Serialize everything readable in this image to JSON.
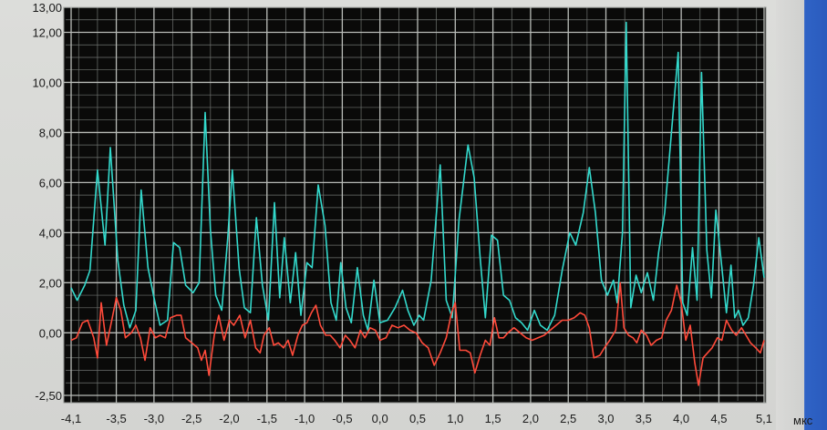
{
  "chart_data": {
    "type": "line",
    "xunit": "мкс",
    "ylim": [
      -2.5,
      13.0
    ],
    "xlim": [
      -4.1,
      5.1
    ],
    "grid": true,
    "y_ticks": [
      {
        "v": -2.5,
        "label": "-2,50"
      },
      {
        "v": 0,
        "label": "0,00"
      },
      {
        "v": 2,
        "label": "2,00"
      },
      {
        "v": 4,
        "label": "4,00"
      },
      {
        "v": 6,
        "label": "6,00"
      },
      {
        "v": 8,
        "label": "8,00"
      },
      {
        "v": 10,
        "label": "10,00"
      },
      {
        "v": 12,
        "label": "12,00"
      },
      {
        "v": 13,
        "label": "13,00"
      }
    ],
    "x_ticks": [
      {
        "v": -4.1,
        "label": "-4,1"
      },
      {
        "v": -3.5,
        "label": "-3,5"
      },
      {
        "v": -3.0,
        "label": "-3,0"
      },
      {
        "v": -2.5,
        "label": "-2,5"
      },
      {
        "v": -2.0,
        "label": "-2,0"
      },
      {
        "v": -1.5,
        "label": "-1,5"
      },
      {
        "v": -1.0,
        "label": "-1,0"
      },
      {
        "v": -0.5,
        "label": "-0,5"
      },
      {
        "v": 0.0,
        "label": "0,0"
      },
      {
        "v": 0.5,
        "label": "0,5"
      },
      {
        "v": 1.0,
        "label": "1,0"
      },
      {
        "v": 1.5,
        "label": "1,5"
      },
      {
        "v": 2.0,
        "label": "2,0"
      },
      {
        "v": 2.5,
        "label": "2,5"
      },
      {
        "v": 3.0,
        "label": "3,0"
      },
      {
        "v": 3.5,
        "label": "3,5"
      },
      {
        "v": 4.0,
        "label": "4,0"
      },
      {
        "v": 4.5,
        "label": "4,5"
      },
      {
        "v": 5.1,
        "label": "5,1"
      }
    ],
    "series": [
      {
        "color": "#33d9cc",
        "points": [
          [
            -4.1,
            1.8
          ],
          [
            -4.02,
            1.3
          ],
          [
            -3.92,
            1.9
          ],
          [
            -3.85,
            2.5
          ],
          [
            -3.75,
            6.5
          ],
          [
            -3.65,
            3.5
          ],
          [
            -3.58,
            7.4
          ],
          [
            -3.48,
            2.9
          ],
          [
            -3.4,
            1.1
          ],
          [
            -3.32,
            0.2
          ],
          [
            -3.24,
            0.9
          ],
          [
            -3.17,
            5.7
          ],
          [
            -3.08,
            2.6
          ],
          [
            -3.0,
            1.4
          ],
          [
            -2.92,
            0.3
          ],
          [
            -2.82,
            0.5
          ],
          [
            -2.74,
            3.6
          ],
          [
            -2.66,
            3.4
          ],
          [
            -2.58,
            1.9
          ],
          [
            -2.48,
            1.6
          ],
          [
            -2.4,
            2.0
          ],
          [
            -2.32,
            8.8
          ],
          [
            -2.25,
            4.1
          ],
          [
            -2.18,
            1.5
          ],
          [
            -2.1,
            0.9
          ],
          [
            -2.02,
            3.8
          ],
          [
            -1.96,
            6.5
          ],
          [
            -1.87,
            2.6
          ],
          [
            -1.8,
            1.0
          ],
          [
            -1.72,
            0.8
          ],
          [
            -1.64,
            4.6
          ],
          [
            -1.56,
            1.9
          ],
          [
            -1.48,
            0.5
          ],
          [
            -1.4,
            5.2
          ],
          [
            -1.33,
            1.4
          ],
          [
            -1.27,
            3.8
          ],
          [
            -1.19,
            1.2
          ],
          [
            -1.12,
            3.2
          ],
          [
            -1.05,
            0.7
          ],
          [
            -0.97,
            2.8
          ],
          [
            -0.9,
            2.6
          ],
          [
            -0.82,
            5.9
          ],
          [
            -0.73,
            4.3
          ],
          [
            -0.65,
            1.2
          ],
          [
            -0.58,
            0.5
          ],
          [
            -0.52,
            2.8
          ],
          [
            -0.45,
            1.0
          ],
          [
            -0.38,
            0.4
          ],
          [
            -0.3,
            2.6
          ],
          [
            -0.22,
            0.7
          ],
          [
            -0.16,
            0.1
          ],
          [
            -0.08,
            2.1
          ],
          [
            0.0,
            0.4
          ],
          [
            0.1,
            0.5
          ],
          [
            0.2,
            1.0
          ],
          [
            0.3,
            1.7
          ],
          [
            0.37,
            0.9
          ],
          [
            0.45,
            0.3
          ],
          [
            0.52,
            0.7
          ],
          [
            0.58,
            0.5
          ],
          [
            0.68,
            2.1
          ],
          [
            0.8,
            6.7
          ],
          [
            0.88,
            1.3
          ],
          [
            0.96,
            0.6
          ],
          [
            1.05,
            4.5
          ],
          [
            1.17,
            7.5
          ],
          [
            1.25,
            6.2
          ],
          [
            1.33,
            3.0
          ],
          [
            1.4,
            0.6
          ],
          [
            1.48,
            3.9
          ],
          [
            1.56,
            3.7
          ],
          [
            1.64,
            1.5
          ],
          [
            1.72,
            1.3
          ],
          [
            1.8,
            0.6
          ],
          [
            1.88,
            0.4
          ],
          [
            1.96,
            0.1
          ],
          [
            2.05,
            0.9
          ],
          [
            2.13,
            0.3
          ],
          [
            2.22,
            0.1
          ],
          [
            2.32,
            0.7
          ],
          [
            2.42,
            2.5
          ],
          [
            2.52,
            4.0
          ],
          [
            2.6,
            3.5
          ],
          [
            2.7,
            4.8
          ],
          [
            2.78,
            6.6
          ],
          [
            2.86,
            4.8
          ],
          [
            2.94,
            2.1
          ],
          [
            3.02,
            1.5
          ],
          [
            3.1,
            2.1
          ],
          [
            3.15,
            1.2
          ],
          [
            3.22,
            4.0
          ],
          [
            3.27,
            12.4
          ],
          [
            3.33,
            1.0
          ],
          [
            3.4,
            2.3
          ],
          [
            3.47,
            1.6
          ],
          [
            3.55,
            2.4
          ],
          [
            3.63,
            1.3
          ],
          [
            3.7,
            3.2
          ],
          [
            3.78,
            4.8
          ],
          [
            3.87,
            8.0
          ],
          [
            3.96,
            11.2
          ],
          [
            4.02,
            1.2
          ],
          [
            4.08,
            0.7
          ],
          [
            4.15,
            3.4
          ],
          [
            4.21,
            1.3
          ],
          [
            4.27,
            10.4
          ],
          [
            4.34,
            3.3
          ],
          [
            4.4,
            1.4
          ],
          [
            4.46,
            4.9
          ],
          [
            4.54,
            2.6
          ],
          [
            4.6,
            0.8
          ],
          [
            4.66,
            2.7
          ],
          [
            4.71,
            0.6
          ],
          [
            4.76,
            0.9
          ],
          [
            4.82,
            0.3
          ],
          [
            4.89,
            0.6
          ],
          [
            4.96,
            1.9
          ],
          [
            5.03,
            3.8
          ],
          [
            5.1,
            2.2
          ]
        ]
      },
      {
        "color": "#ff4a3a",
        "points": [
          [
            -4.1,
            -0.3
          ],
          [
            -4.03,
            -0.2
          ],
          [
            -3.95,
            0.4
          ],
          [
            -3.88,
            0.5
          ],
          [
            -3.8,
            -0.2
          ],
          [
            -3.75,
            -1.0
          ],
          [
            -3.7,
            1.2
          ],
          [
            -3.63,
            -0.5
          ],
          [
            -3.56,
            0.5
          ],
          [
            -3.5,
            1.4
          ],
          [
            -3.44,
            0.9
          ],
          [
            -3.38,
            -0.2
          ],
          [
            -3.3,
            0.0
          ],
          [
            -3.24,
            0.3
          ],
          [
            -3.18,
            -0.2
          ],
          [
            -3.12,
            -1.1
          ],
          [
            -3.05,
            0.2
          ],
          [
            -2.98,
            -0.2
          ],
          [
            -2.92,
            -0.1
          ],
          [
            -2.85,
            -0.2
          ],
          [
            -2.78,
            0.6
          ],
          [
            -2.7,
            0.7
          ],
          [
            -2.64,
            0.7
          ],
          [
            -2.58,
            -0.2
          ],
          [
            -2.5,
            -0.4
          ],
          [
            -2.42,
            -0.6
          ],
          [
            -2.37,
            -1.1
          ],
          [
            -2.32,
            -0.7
          ],
          [
            -2.27,
            -1.7
          ],
          [
            -2.2,
            -0.1
          ],
          [
            -2.14,
            0.7
          ],
          [
            -2.07,
            -0.3
          ],
          [
            -2.0,
            0.5
          ],
          [
            -1.94,
            0.3
          ],
          [
            -1.86,
            0.7
          ],
          [
            -1.79,
            -0.2
          ],
          [
            -1.72,
            0.5
          ],
          [
            -1.65,
            -0.6
          ],
          [
            -1.59,
            -0.8
          ],
          [
            -1.54,
            -0.1
          ],
          [
            -1.47,
            0.2
          ],
          [
            -1.41,
            -0.5
          ],
          [
            -1.35,
            -0.4
          ],
          [
            -1.28,
            -0.6
          ],
          [
            -1.22,
            -0.3
          ],
          [
            -1.16,
            -0.9
          ],
          [
            -1.09,
            -0.1
          ],
          [
            -1.03,
            0.3
          ],
          [
            -0.97,
            0.4
          ],
          [
            -0.91,
            0.8
          ],
          [
            -0.85,
            1.1
          ],
          [
            -0.79,
            0.3
          ],
          [
            -0.72,
            -0.1
          ],
          [
            -0.66,
            -0.1
          ],
          [
            -0.6,
            -0.3
          ],
          [
            -0.53,
            -0.6
          ],
          [
            -0.46,
            -0.1
          ],
          [
            -0.4,
            -0.3
          ],
          [
            -0.33,
            -0.6
          ],
          [
            -0.26,
            0.1
          ],
          [
            -0.2,
            -0.2
          ],
          [
            -0.13,
            0.2
          ],
          [
            -0.06,
            0.1
          ],
          [
            0.0,
            -0.3
          ],
          [
            0.08,
            -0.2
          ],
          [
            0.16,
            0.3
          ],
          [
            0.24,
            0.2
          ],
          [
            0.32,
            0.3
          ],
          [
            0.4,
            0.1
          ],
          [
            0.48,
            0.0
          ],
          [
            0.56,
            -0.4
          ],
          [
            0.64,
            -0.6
          ],
          [
            0.72,
            -1.3
          ],
          [
            0.8,
            -0.8
          ],
          [
            0.88,
            -0.2
          ],
          [
            0.95,
            0.8
          ],
          [
            1.0,
            1.2
          ],
          [
            1.06,
            -0.7
          ],
          [
            1.14,
            -0.7
          ],
          [
            1.2,
            -0.8
          ],
          [
            1.26,
            -1.6
          ],
          [
            1.33,
            -0.9
          ],
          [
            1.4,
            -0.3
          ],
          [
            1.46,
            -0.5
          ],
          [
            1.52,
            0.6
          ],
          [
            1.58,
            -0.2
          ],
          [
            1.64,
            -0.2
          ],
          [
            1.7,
            0.0
          ],
          [
            1.78,
            0.2
          ],
          [
            1.86,
            0.0
          ],
          [
            1.94,
            -0.2
          ],
          [
            2.02,
            -0.3
          ],
          [
            2.1,
            -0.2
          ],
          [
            2.18,
            -0.1
          ],
          [
            2.26,
            0.1
          ],
          [
            2.34,
            0.3
          ],
          [
            2.42,
            0.5
          ],
          [
            2.5,
            0.5
          ],
          [
            2.58,
            0.6
          ],
          [
            2.66,
            0.8
          ],
          [
            2.72,
            0.7
          ],
          [
            2.78,
            0.2
          ],
          [
            2.84,
            -1.0
          ],
          [
            2.92,
            -0.9
          ],
          [
            2.98,
            -0.6
          ],
          [
            3.05,
            -0.3
          ],
          [
            3.13,
            0.1
          ],
          [
            3.19,
            2.0
          ],
          [
            3.24,
            0.2
          ],
          [
            3.3,
            -0.1
          ],
          [
            3.36,
            -0.2
          ],
          [
            3.41,
            -0.4
          ],
          [
            3.47,
            0.1
          ],
          [
            3.54,
            -0.1
          ],
          [
            3.6,
            -0.5
          ],
          [
            3.67,
            -0.3
          ],
          [
            3.74,
            -0.2
          ],
          [
            3.8,
            0.5
          ],
          [
            3.87,
            0.9
          ],
          [
            3.94,
            1.9
          ],
          [
            4.0,
            1.2
          ],
          [
            4.06,
            -0.3
          ],
          [
            4.12,
            0.3
          ],
          [
            4.18,
            -1.2
          ],
          [
            4.23,
            -2.1
          ],
          [
            4.29,
            -1.0
          ],
          [
            4.35,
            -0.8
          ],
          [
            4.41,
            -0.6
          ],
          [
            4.48,
            -0.2
          ],
          [
            4.54,
            -0.3
          ],
          [
            4.6,
            0.5
          ],
          [
            4.67,
            0.1
          ],
          [
            4.73,
            -0.1
          ],
          [
            4.8,
            0.2
          ],
          [
            4.86,
            -0.1
          ],
          [
            4.92,
            -0.4
          ],
          [
            4.99,
            -0.6
          ],
          [
            5.05,
            -0.8
          ],
          [
            5.1,
            -0.3
          ]
        ]
      }
    ]
  }
}
